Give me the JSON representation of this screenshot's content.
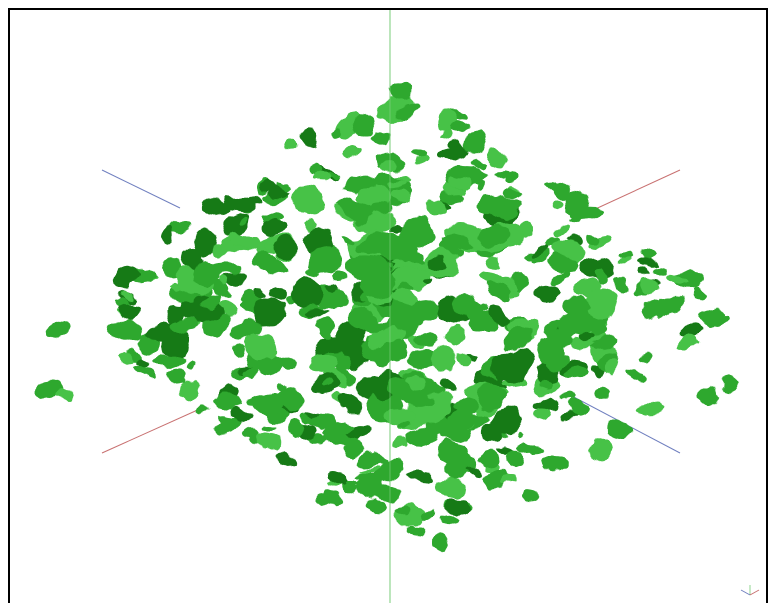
{
  "scene": {
    "background_color": "#ffffff",
    "frame_color": "#000000",
    "blob_color": "#2fa82f",
    "blob_light_color": "#46c246",
    "blob_dark_color": "#167a16",
    "axes": {
      "vertical_color": "#8fd48f",
      "red_axis_color": "#c87070",
      "blue_axis_color": "#6f7fbf"
    },
    "orientation_gizmo_icon": "axis-triad-icon"
  }
}
